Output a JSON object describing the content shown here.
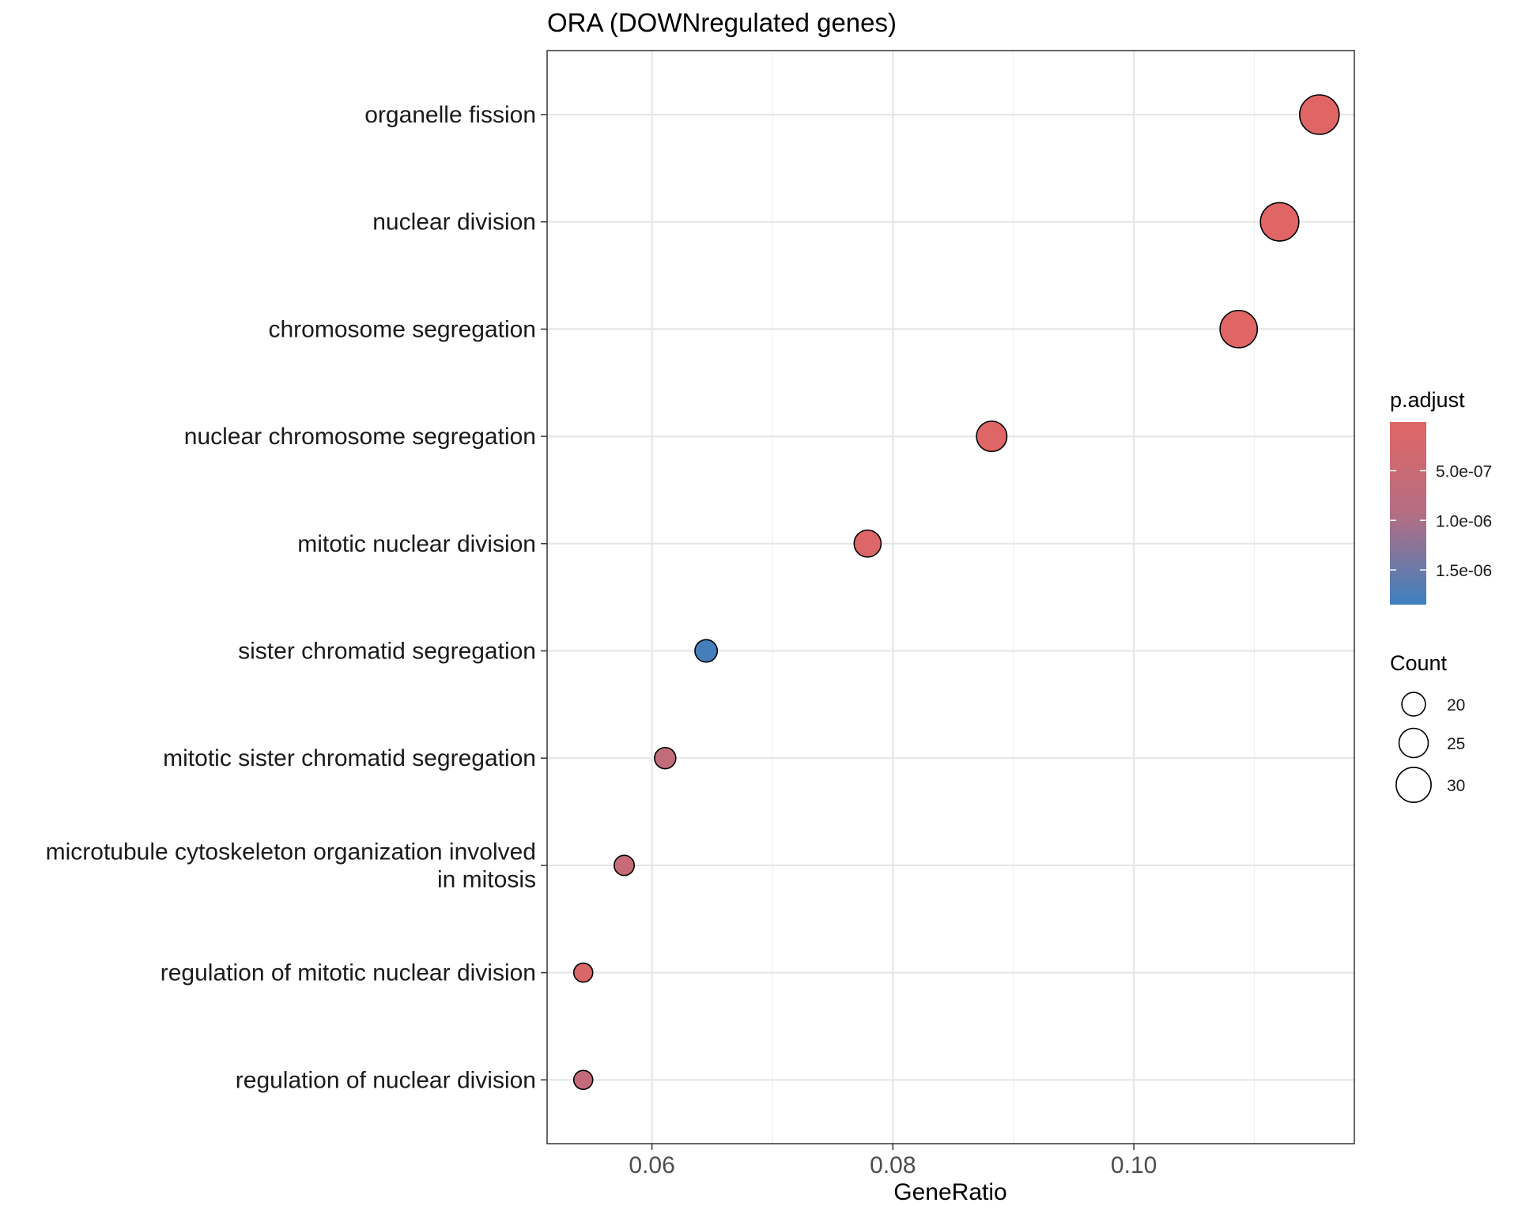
{
  "chart_data": {
    "type": "scatter",
    "title": "ORA (DOWNregulated genes)",
    "xlabel": "GeneRatio",
    "ylabel": "",
    "xlim": [
      0.0513,
      0.1183
    ],
    "xticks": [
      0.06,
      0.08,
      0.1
    ],
    "xtick_labels": [
      "0.06",
      "0.08",
      "0.10"
    ],
    "grid": true,
    "legend_position": "right",
    "points": [
      {
        "term": "organelle fission",
        "term_lines": [
          "organelle fission"
        ],
        "gene_ratio": 0.1154,
        "count": 34,
        "p_adjust": 1e-08
      },
      {
        "term": "nuclear division",
        "term_lines": [
          "nuclear division"
        ],
        "gene_ratio": 0.1121,
        "count": 33,
        "p_adjust": 2e-08
      },
      {
        "term": "chromosome segregation",
        "term_lines": [
          "chromosome segregation"
        ],
        "gene_ratio": 0.1087,
        "count": 32,
        "p_adjust": 2e-08
      },
      {
        "term": "nuclear chromosome segregation",
        "term_lines": [
          "nuclear chromosome segregation"
        ],
        "gene_ratio": 0.0882,
        "count": 26,
        "p_adjust": 5e-08
      },
      {
        "term": "mitotic nuclear division",
        "term_lines": [
          "mitotic nuclear division"
        ],
        "gene_ratio": 0.0779,
        "count": 23,
        "p_adjust": 8e-08
      },
      {
        "term": "sister chromatid segregation",
        "term_lines": [
          "sister chromatid segregation"
        ],
        "gene_ratio": 0.0645,
        "count": 19,
        "p_adjust": 1.8e-06
      },
      {
        "term": "mitotic sister chromatid segregation",
        "term_lines": [
          "mitotic sister chromatid segregation"
        ],
        "gene_ratio": 0.0611,
        "count": 18,
        "p_adjust": 6.5e-07
      },
      {
        "term": "microtubule cytoskeleton organization involved in mitosis",
        "term_lines": [
          "microtubule cytoskeleton organization involved",
          "in mitosis"
        ],
        "gene_ratio": 0.0577,
        "count": 17,
        "p_adjust": 5.5e-07
      },
      {
        "term": "regulation of mitotic nuclear division",
        "term_lines": [
          "regulation of mitotic nuclear division"
        ],
        "gene_ratio": 0.0543,
        "count": 16,
        "p_adjust": 1.5e-07
      },
      {
        "term": "regulation of nuclear division",
        "term_lines": [
          "regulation of nuclear division"
        ],
        "gene_ratio": 0.0543,
        "count": 16,
        "p_adjust": 6e-07
      }
    ],
    "color_legend": {
      "title": "p.adjust",
      "low_color": "#e06666",
      "mid_color": "#b56e83",
      "high_color": "#3d80bf",
      "range": [
        1e-08,
        1.85e-06
      ],
      "ticks": [
        5e-07,
        1e-06,
        1.5e-06
      ],
      "tick_labels": [
        "5.0e-07",
        "1.0e-06",
        "1.5e-06"
      ]
    },
    "size_legend": {
      "title": "Count",
      "values": [
        20,
        25,
        30
      ],
      "labels": [
        "20",
        "25",
        "30"
      ],
      "range": [
        16,
        34
      ]
    }
  }
}
